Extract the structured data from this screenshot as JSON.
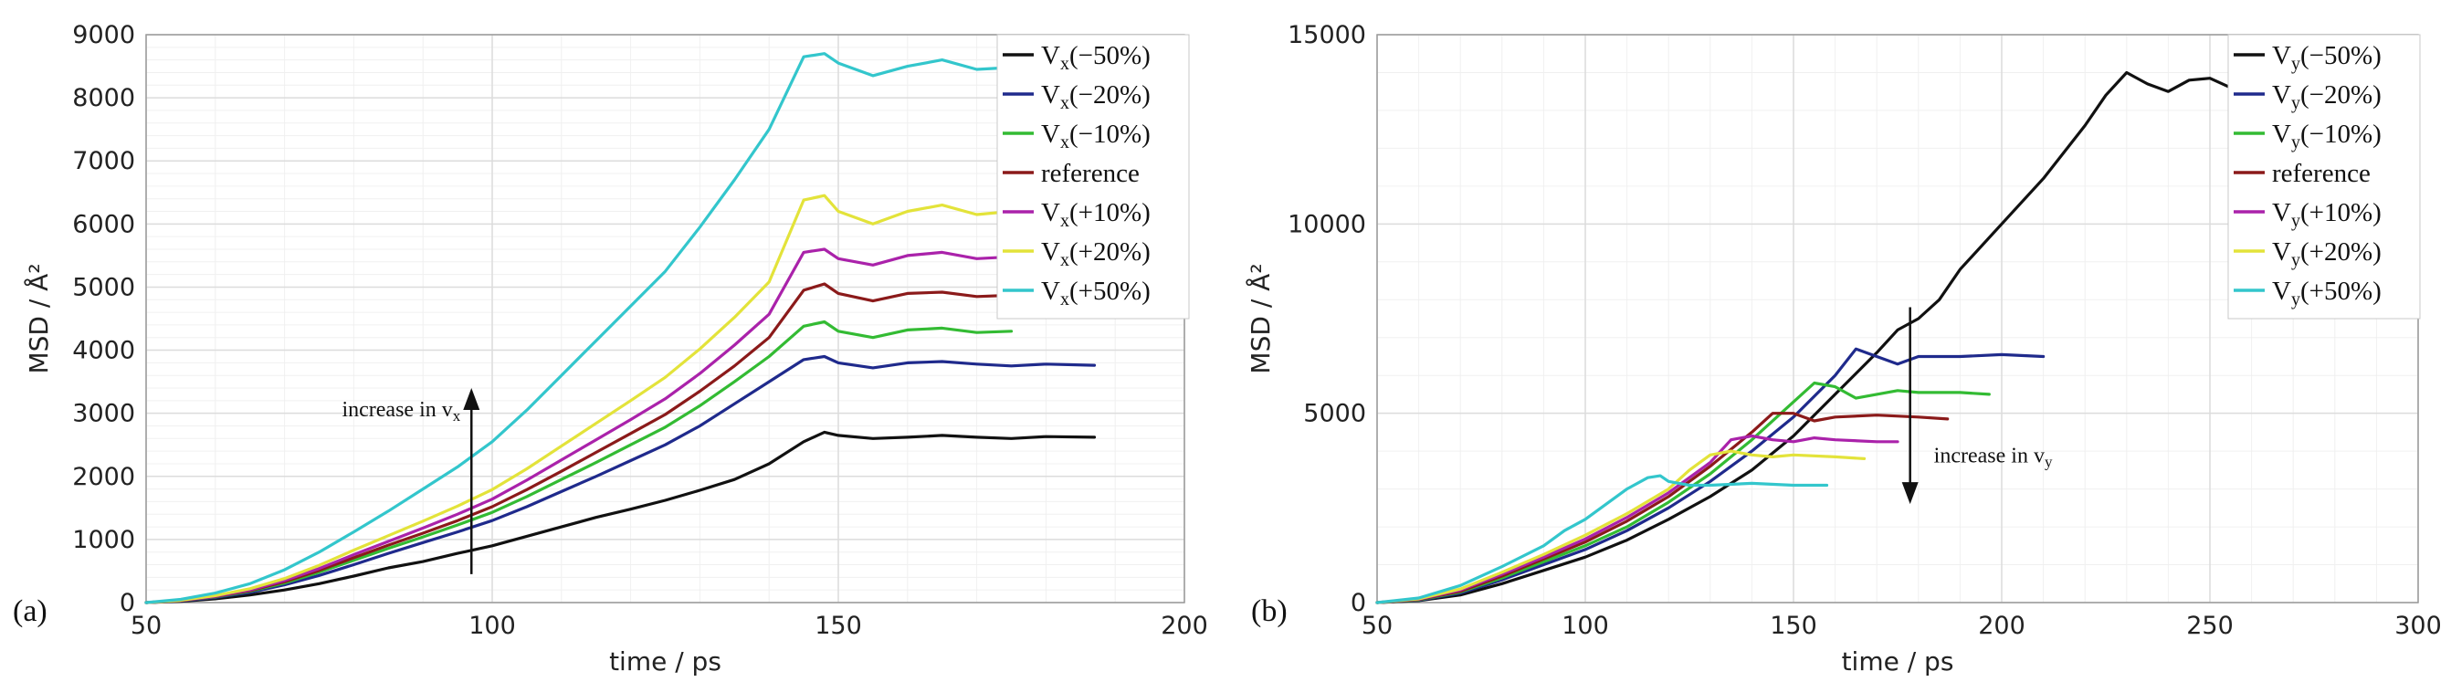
{
  "chart_data": [
    {
      "type": "line",
      "panel_label": "(a)",
      "xlabel": "time / ps",
      "ylabel": "MSD / Å²",
      "xlim": [
        50,
        200
      ],
      "ylim": [
        0,
        9000
      ],
      "xticks": [
        50,
        100,
        150,
        200
      ],
      "yticks": [
        0,
        1000,
        2000,
        3000,
        4000,
        5000,
        6000,
        7000,
        8000,
        9000
      ],
      "grid": true,
      "legend_position": "top-right",
      "annotation": {
        "text": "increase in v",
        "sub": "x",
        "arrow": "up",
        "x": 97,
        "y_from": 450,
        "y_to": 3400
      },
      "series": [
        {
          "name": "V",
          "sub": "x",
          "suffix": "(−50%)",
          "color": "#111111",
          "x": [
            50,
            55,
            60,
            65,
            70,
            75,
            80,
            85,
            90,
            95,
            100,
            105,
            110,
            115,
            120,
            125,
            130,
            135,
            140,
            145,
            148,
            150,
            155,
            160,
            165,
            170,
            175,
            180,
            187
          ],
          "y": [
            0,
            20,
            60,
            120,
            200,
            300,
            420,
            550,
            650,
            780,
            900,
            1050,
            1200,
            1350,
            1480,
            1620,
            1780,
            1950,
            2200,
            2550,
            2700,
            2650,
            2600,
            2620,
            2650,
            2620,
            2600,
            2630,
            2620
          ]
        },
        {
          "name": "V",
          "sub": "x",
          "suffix": "(−20%)",
          "color": "#1f2a8c",
          "x": [
            50,
            55,
            60,
            65,
            70,
            75,
            80,
            85,
            90,
            95,
            100,
            105,
            110,
            115,
            120,
            125,
            130,
            135,
            140,
            145,
            148,
            150,
            155,
            160,
            165,
            170,
            175,
            180,
            187
          ],
          "y": [
            0,
            25,
            80,
            160,
            280,
            430,
            600,
            780,
            950,
            1120,
            1300,
            1520,
            1760,
            2000,
            2250,
            2500,
            2800,
            3150,
            3500,
            3850,
            3900,
            3800,
            3720,
            3800,
            3820,
            3780,
            3750,
            3780,
            3760
          ]
        },
        {
          "name": "V",
          "sub": "x",
          "suffix": "(−10%)",
          "color": "#33bb33",
          "x": [
            50,
            55,
            60,
            65,
            70,
            75,
            80,
            85,
            90,
            95,
            100,
            105,
            110,
            115,
            120,
            125,
            130,
            135,
            140,
            145,
            148,
            150,
            155,
            160,
            165,
            170,
            175
          ],
          "y": [
            0,
            30,
            90,
            180,
            310,
            480,
            670,
            860,
            1040,
            1230,
            1430,
            1680,
            1950,
            2220,
            2500,
            2780,
            3120,
            3500,
            3900,
            4380,
            4450,
            4300,
            4200,
            4320,
            4350,
            4280,
            4300
          ]
        },
        {
          "name": "reference",
          "sub": "",
          "suffix": "",
          "color": "#8b1a1a",
          "x": [
            50,
            55,
            60,
            65,
            70,
            75,
            80,
            85,
            90,
            95,
            100,
            105,
            110,
            115,
            120,
            125,
            130,
            135,
            140,
            145,
            148,
            150,
            155,
            160,
            165,
            170,
            175
          ],
          "y": [
            0,
            30,
            95,
            190,
            330,
            510,
            710,
            910,
            1100,
            1300,
            1520,
            1790,
            2080,
            2380,
            2680,
            2980,
            3350,
            3750,
            4200,
            4950,
            5050,
            4900,
            4780,
            4900,
            4920,
            4850,
            4870
          ]
        },
        {
          "name": "V",
          "sub": "x",
          "suffix": "(+10%)",
          "color": "#aa22aa",
          "x": [
            50,
            55,
            60,
            65,
            70,
            75,
            80,
            85,
            90,
            95,
            100,
            105,
            110,
            115,
            120,
            125,
            130,
            135,
            140,
            145,
            148,
            150,
            155,
            160,
            165,
            170,
            175
          ],
          "y": [
            0,
            32,
            100,
            200,
            350,
            540,
            760,
            970,
            1180,
            1400,
            1640,
            1940,
            2260,
            2580,
            2900,
            3230,
            3630,
            4080,
            4570,
            5550,
            5600,
            5450,
            5350,
            5500,
            5550,
            5450,
            5480
          ]
        },
        {
          "name": "V",
          "sub": "x",
          "suffix": "(+20%)",
          "color": "#e3e33a",
          "x": [
            50,
            55,
            60,
            65,
            70,
            75,
            80,
            85,
            90,
            95,
            100,
            105,
            110,
            115,
            120,
            125,
            130,
            135,
            140,
            145,
            148,
            150,
            155,
            160,
            165,
            170,
            175
          ],
          "y": [
            0,
            35,
            110,
            220,
            380,
            590,
            830,
            1060,
            1290,
            1530,
            1790,
            2120,
            2480,
            2840,
            3200,
            3570,
            4020,
            4520,
            5080,
            6380,
            6450,
            6200,
            6000,
            6200,
            6300,
            6150,
            6200
          ]
        },
        {
          "name": "V",
          "sub": "x",
          "suffix": "(+50%)",
          "color": "#33c6cc",
          "x": [
            50,
            55,
            60,
            65,
            70,
            75,
            80,
            85,
            90,
            95,
            100,
            105,
            110,
            115,
            120,
            125,
            130,
            135,
            140,
            145,
            148,
            150,
            155,
            160,
            165,
            170,
            175
          ],
          "y": [
            0,
            50,
            150,
            300,
            520,
            800,
            1120,
            1450,
            1800,
            2150,
            2550,
            3050,
            3600,
            4150,
            4700,
            5250,
            5950,
            6700,
            7500,
            8650,
            8700,
            8550,
            8350,
            8500,
            8600,
            8450,
            8480
          ]
        }
      ]
    },
    {
      "type": "line",
      "panel_label": "(b)",
      "xlabel": "time / ps",
      "ylabel": "MSD / Å²",
      "xlim": [
        50,
        300
      ],
      "ylim": [
        0,
        15000
      ],
      "xticks": [
        50,
        100,
        150,
        200,
        250,
        300
      ],
      "yticks": [
        0,
        5000,
        10000,
        15000
      ],
      "grid": true,
      "legend_position": "top-right",
      "annotation": {
        "text": "increase in v",
        "sub": "y",
        "arrow": "down",
        "x": 178,
        "y_from": 7800,
        "y_to": 2600
      },
      "series": [
        {
          "name": "V",
          "sub": "y",
          "suffix": "(−50%)",
          "color": "#111111",
          "x": [
            50,
            60,
            70,
            80,
            90,
            100,
            110,
            120,
            130,
            140,
            150,
            160,
            170,
            175,
            180,
            185,
            190,
            200,
            210,
            220,
            225,
            230,
            235,
            240,
            245,
            250,
            255,
            260
          ],
          "y": [
            0,
            50,
            200,
            500,
            850,
            1200,
            1650,
            2200,
            2800,
            3500,
            4400,
            5500,
            6600,
            7200,
            7500,
            8000,
            8800,
            10000,
            11200,
            12600,
            13400,
            14000,
            13700,
            13500,
            13800,
            13850,
            13600,
            13650
          ]
        },
        {
          "name": "V",
          "sub": "y",
          "suffix": "(−20%)",
          "color": "#1f2a8c",
          "x": [
            50,
            60,
            70,
            80,
            90,
            100,
            110,
            120,
            130,
            140,
            150,
            160,
            165,
            170,
            175,
            180,
            190,
            200,
            210
          ],
          "y": [
            0,
            60,
            250,
            600,
            1000,
            1400,
            1900,
            2500,
            3200,
            4000,
            4900,
            6000,
            6700,
            6500,
            6300,
            6500,
            6500,
            6550,
            6500
          ]
        },
        {
          "name": "V",
          "sub": "y",
          "suffix": "(−10%)",
          "color": "#33bb33",
          "x": [
            50,
            60,
            70,
            80,
            90,
            100,
            110,
            120,
            130,
            140,
            150,
            155,
            160,
            165,
            170,
            175,
            180,
            190,
            197
          ],
          "y": [
            0,
            70,
            280,
            650,
            1080,
            1500,
            2000,
            2650,
            3400,
            4300,
            5300,
            5800,
            5700,
            5400,
            5500,
            5600,
            5550,
            5550,
            5500
          ]
        },
        {
          "name": "reference",
          "sub": "",
          "suffix": "",
          "color": "#8b1a1a",
          "x": [
            50,
            60,
            70,
            80,
            90,
            100,
            110,
            120,
            130,
            140,
            145,
            150,
            155,
            160,
            170,
            180,
            187
          ],
          "y": [
            0,
            80,
            300,
            700,
            1150,
            1600,
            2150,
            2800,
            3600,
            4500,
            5000,
            5000,
            4800,
            4900,
            4950,
            4900,
            4850
          ]
        },
        {
          "name": "V",
          "sub": "y",
          "suffix": "(+10%)",
          "color": "#aa22aa",
          "x": [
            50,
            60,
            70,
            80,
            90,
            100,
            110,
            120,
            130,
            135,
            140,
            145,
            150,
            155,
            160,
            170,
            175
          ],
          "y": [
            0,
            90,
            330,
            750,
            1200,
            1680,
            2250,
            2900,
            3700,
            4300,
            4400,
            4300,
            4250,
            4350,
            4300,
            4250,
            4250
          ]
        },
        {
          "name": "V",
          "sub": "y",
          "suffix": "(+20%)",
          "color": "#e3e33a",
          "x": [
            50,
            60,
            70,
            80,
            90,
            100,
            110,
            120,
            125,
            130,
            135,
            140,
            145,
            150,
            160,
            167
          ],
          "y": [
            0,
            100,
            360,
            800,
            1270,
            1780,
            2350,
            3000,
            3500,
            3900,
            4000,
            3900,
            3850,
            3900,
            3850,
            3800
          ]
        },
        {
          "name": "V",
          "sub": "y",
          "suffix": "(+50%)",
          "color": "#33c6cc",
          "x": [
            50,
            60,
            70,
            80,
            90,
            95,
            100,
            105,
            110,
            115,
            118,
            120,
            125,
            130,
            140,
            150,
            158
          ],
          "y": [
            0,
            120,
            450,
            950,
            1500,
            1900,
            2200,
            2600,
            3000,
            3300,
            3350,
            3200,
            3100,
            3100,
            3150,
            3100,
            3100
          ]
        }
      ]
    }
  ]
}
